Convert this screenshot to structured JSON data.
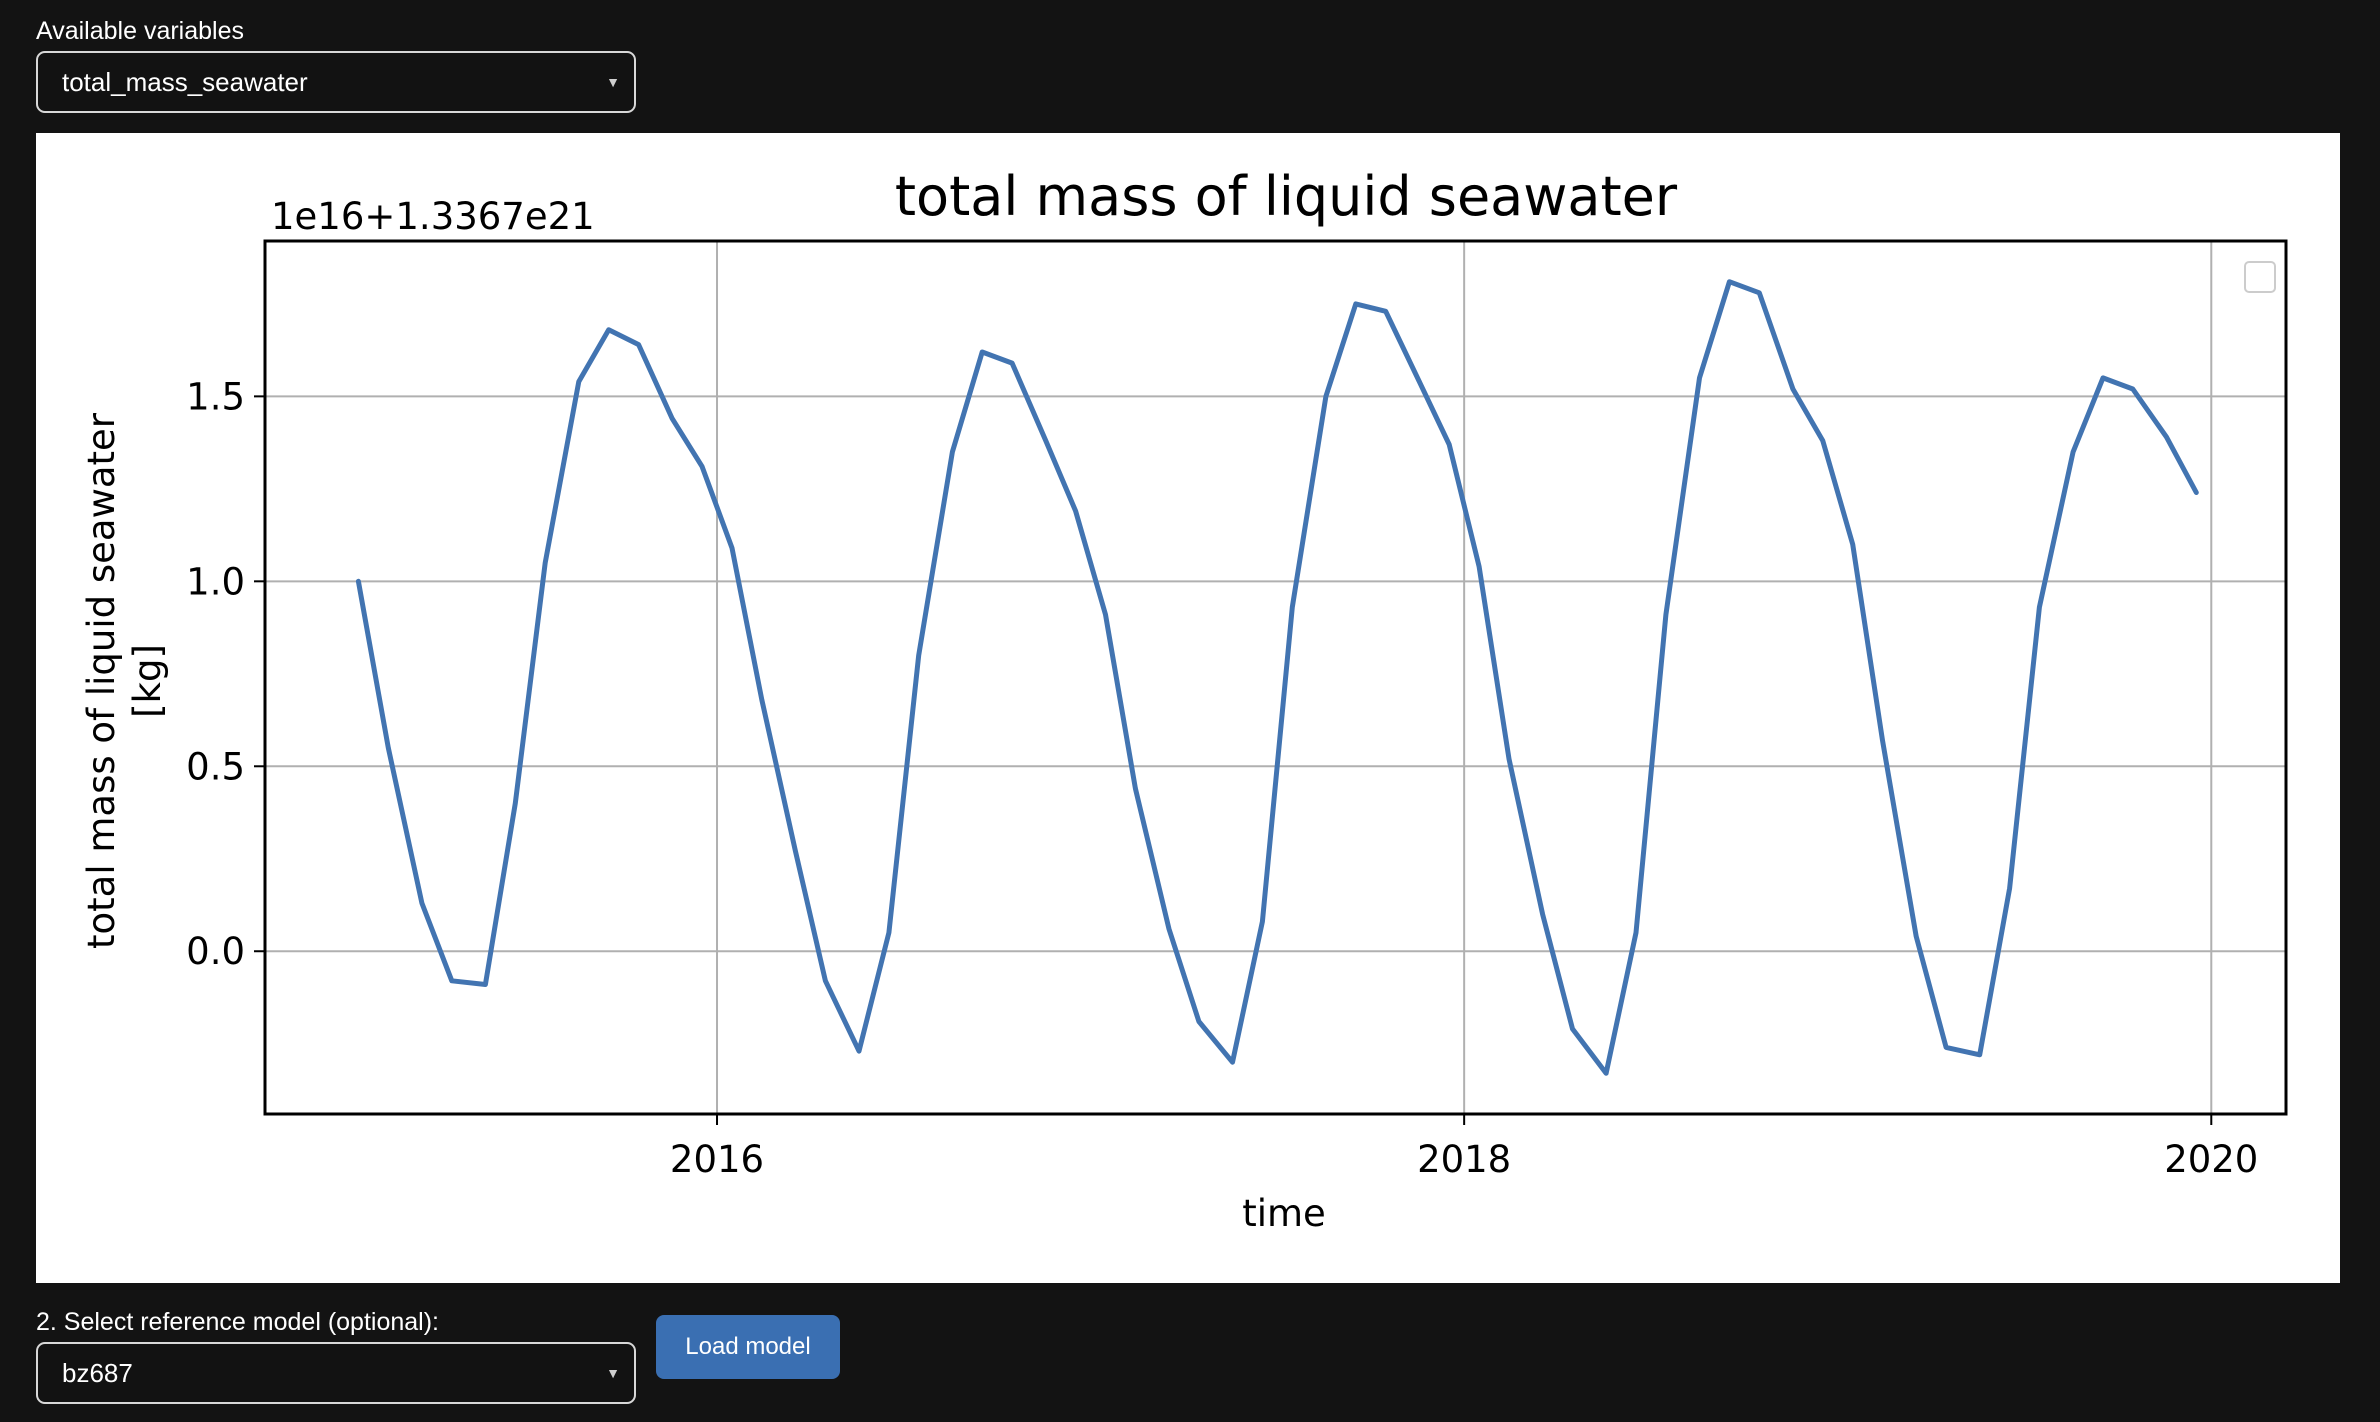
{
  "variables": {
    "label": "Available variables",
    "selected": "total_mass_seawater"
  },
  "reference": {
    "label": "2. Select reference model (optional):",
    "selected": "bz687",
    "load_button": "Load model"
  },
  "icons": {
    "dropdown": "caret-down-icon",
    "legend": "empty-legend-box"
  },
  "colors": {
    "background": "#131313",
    "line": "#4274b1",
    "button": "#3a6fb2"
  },
  "chart_data": {
    "type": "line",
    "title": "total mass of liquid seawater",
    "offset_text": "1e16+1.3367e21",
    "xlabel": "time",
    "ylabel_lines": [
      "total mass of liquid seawater",
      "[kg]"
    ],
    "x_ticks": [
      2016,
      2018,
      2020
    ],
    "y_ticks": [
      "0.0",
      "0.5",
      "1.0",
      "1.5"
    ],
    "xlim": [
      2014.79,
      2020.2
    ],
    "ylim": [
      -0.44,
      1.92
    ],
    "grid": true,
    "legend": "top-right (empty)",
    "series": [
      {
        "x": [
          2015.04,
          2015.12,
          2015.21,
          2015.29,
          2015.38,
          2015.46,
          2015.54,
          2015.63,
          2015.71,
          2015.79,
          2015.88,
          2015.96,
          2016.04,
          2016.12,
          2016.21,
          2016.29,
          2016.38,
          2016.46,
          2016.54,
          2016.63,
          2016.71,
          2016.79,
          2016.88,
          2016.96,
          2017.04,
          2017.12,
          2017.21,
          2017.29,
          2017.38,
          2017.46,
          2017.54,
          2017.63,
          2017.71,
          2017.79,
          2017.88,
          2017.96,
          2018.04,
          2018.12,
          2018.21,
          2018.29,
          2018.38,
          2018.46,
          2018.54,
          2018.63,
          2018.71,
          2018.79,
          2018.88,
          2018.96,
          2019.04,
          2019.12,
          2019.21,
          2019.29,
          2019.38,
          2019.46,
          2019.54,
          2019.63,
          2019.71,
          2019.79,
          2019.88,
          2019.96
        ],
        "y": [
          1.0,
          0.55,
          0.13,
          -0.08,
          -0.09,
          0.4,
          1.05,
          1.54,
          1.68,
          1.64,
          1.44,
          1.31,
          1.09,
          0.68,
          0.27,
          -0.08,
          -0.27,
          0.05,
          0.8,
          1.35,
          1.62,
          1.59,
          1.38,
          1.19,
          0.91,
          0.44,
          0.06,
          -0.19,
          -0.3,
          0.08,
          0.93,
          1.5,
          1.75,
          1.73,
          1.54,
          1.37,
          1.04,
          0.52,
          0.1,
          -0.21,
          -0.33,
          0.05,
          0.91,
          1.55,
          1.81,
          1.78,
          1.52,
          1.38,
          1.1,
          0.57,
          0.04,
          -0.26,
          -0.28,
          0.17,
          0.93,
          1.35,
          1.55,
          1.52,
          1.39,
          1.24
        ]
      }
    ]
  }
}
